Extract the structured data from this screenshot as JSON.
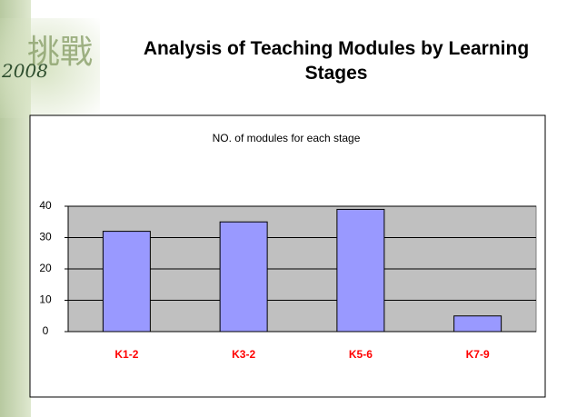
{
  "logo": {
    "chars": "挑戰",
    "year": "2008"
  },
  "title": "Analysis of Teaching Modules by Learning Stages",
  "chart_data": {
    "type": "bar",
    "title": "NO. of modules for each stage",
    "categories": [
      "K1-2",
      "K3-2",
      "K5-6",
      "K7-9"
    ],
    "values": [
      32,
      35,
      39,
      5
    ],
    "color": "#9999ff",
    "category_color": "#ff0000",
    "plot_background": "#c0c0c0",
    "ylim": [
      0,
      40
    ],
    "yticks": [
      0,
      10,
      20,
      30,
      40
    ],
    "grid": true
  }
}
